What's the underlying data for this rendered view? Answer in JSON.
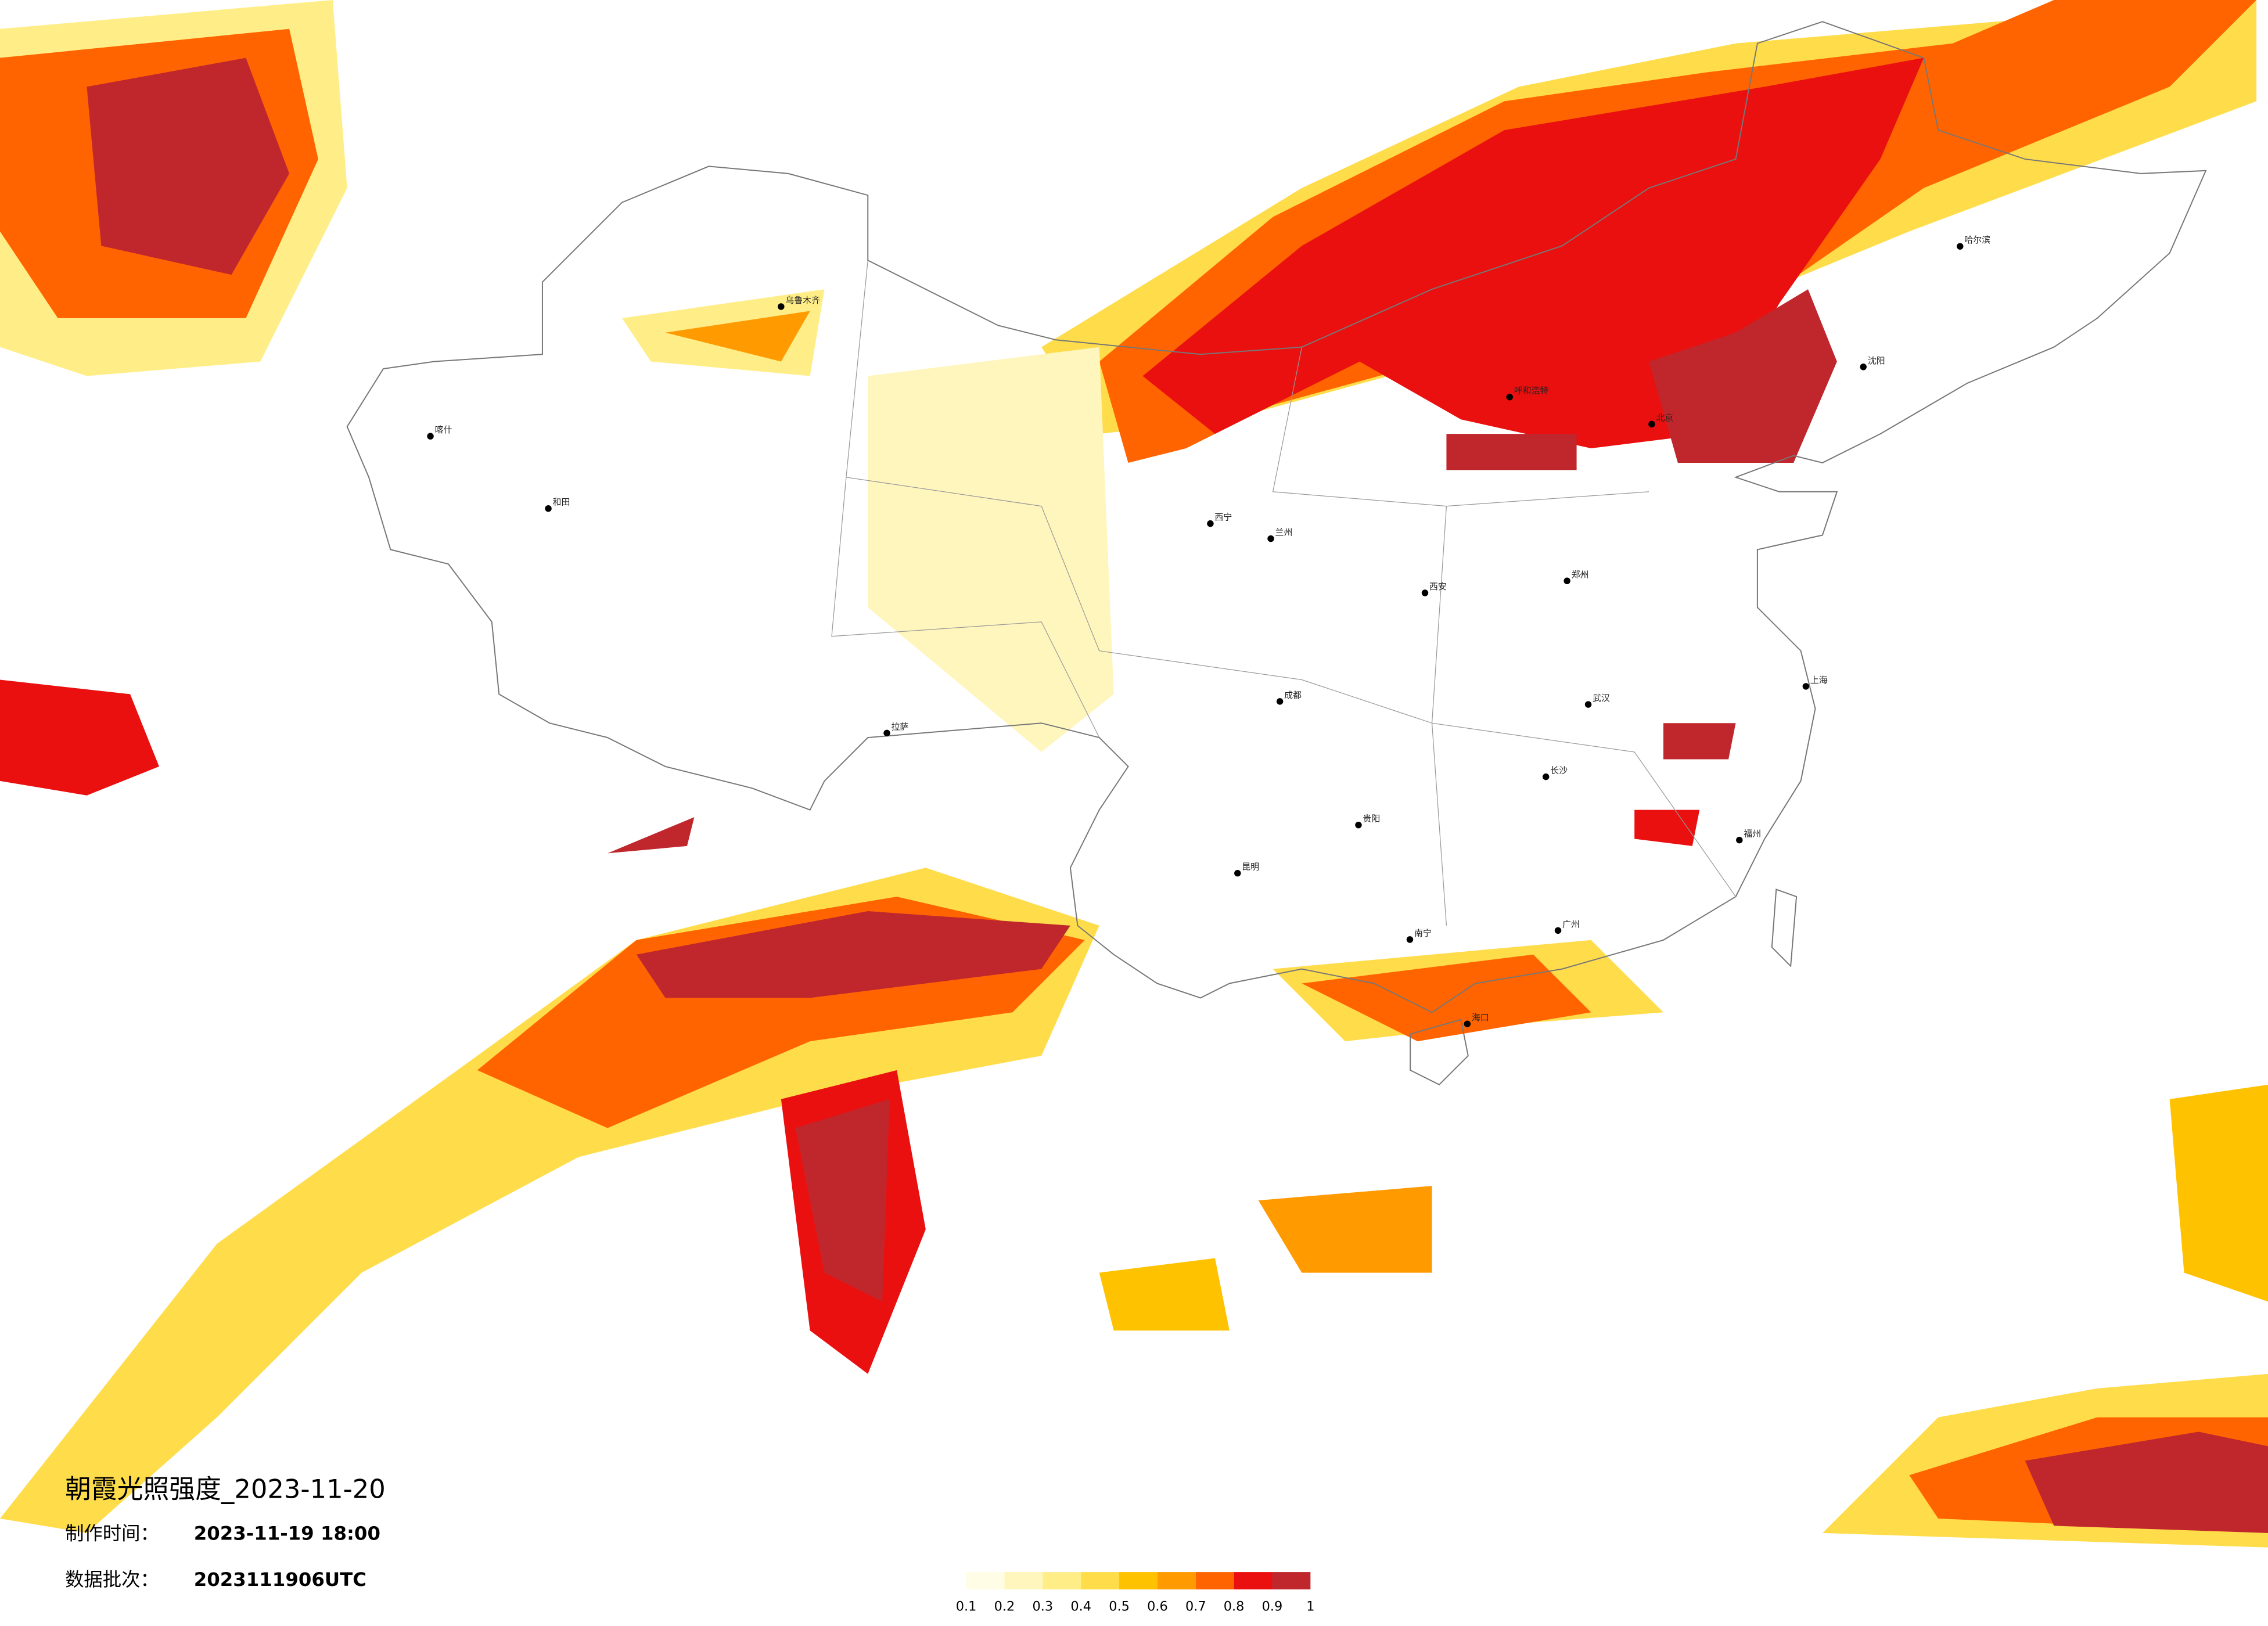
{
  "title": "朝霞光照强度_2023-11-20",
  "made_time_label": "制作时间：",
  "made_time": "2023-11-19 18:00",
  "batch_label": "数据批次：",
  "batch": "2023111906UTC",
  "legend": {
    "ticks": [
      0.1,
      0.2,
      0.3,
      0.4,
      0.5,
      0.6,
      0.7,
      0.8,
      0.9,
      1
    ],
    "colors": [
      "#fffde6",
      "#fff6bd",
      "#ffee88",
      "#ffdc4a",
      "#ffc200",
      "#ff9a00",
      "#ff6400",
      "#ea1010",
      "#c0272d"
    ]
  },
  "cities": [
    "北京",
    "上海",
    "广州",
    "成都",
    "西安",
    "武汉",
    "拉萨",
    "乌鲁木齐",
    "哈尔滨",
    "昆明",
    "兰州",
    "呼和浩特",
    "沈阳",
    "长沙",
    "南宁",
    "海口",
    "福州",
    "郑州",
    "贵阳",
    "西宁",
    "喀什",
    "和田"
  ]
}
